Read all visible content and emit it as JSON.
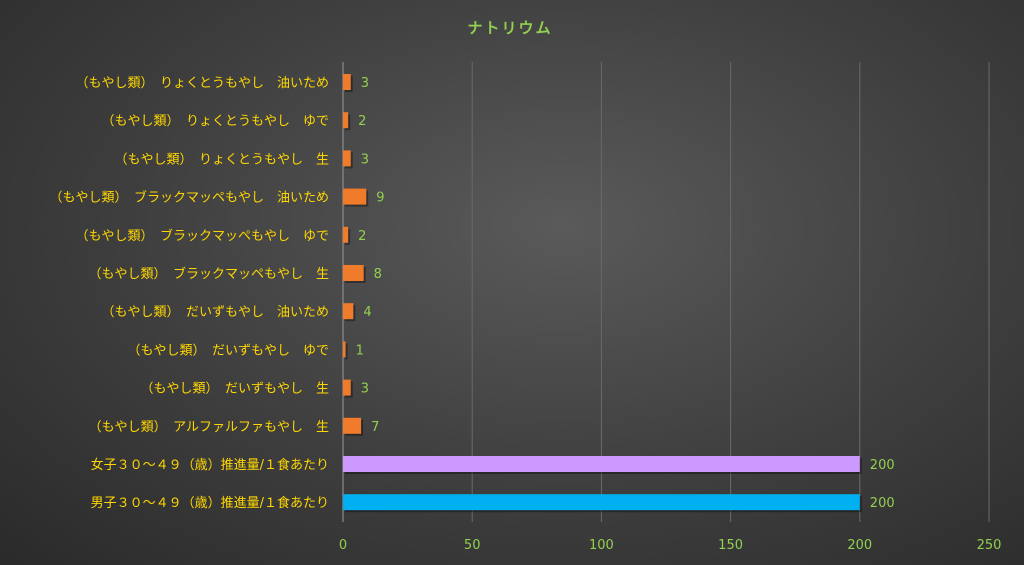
{
  "chart_data": {
    "type": "bar",
    "orientation": "horizontal",
    "title": "ナトリウム",
    "xlim": [
      0,
      250
    ],
    "xticks": [
      0,
      50,
      100,
      150,
      200,
      250
    ],
    "grid": true,
    "bars": [
      {
        "label": "（もやし類）　りょくとうもやし　油いため",
        "value": 3,
        "color": "#f07b2a"
      },
      {
        "label": "（もやし類）　りょくとうもやし　ゆで",
        "value": 2,
        "color": "#f07b2a"
      },
      {
        "label": "（もやし類）　りょくとうもやし　生",
        "value": 3,
        "color": "#f07b2a"
      },
      {
        "label": "（もやし類）　ブラックマッペもやし　油いため",
        "value": 9,
        "color": "#f07b2a"
      },
      {
        "label": "（もやし類）　ブラックマッペもやし　ゆで",
        "value": 2,
        "color": "#f07b2a"
      },
      {
        "label": "（もやし類）　ブラックマッペもやし　生",
        "value": 8,
        "color": "#f07b2a"
      },
      {
        "label": "（もやし類）　だいずもやし　油いため",
        "value": 4,
        "color": "#f07b2a"
      },
      {
        "label": "（もやし類）　だいずもやし　ゆで",
        "value": 1,
        "color": "#f07b2a"
      },
      {
        "label": "（もやし類）　だいずもやし　生",
        "value": 3,
        "color": "#f07b2a"
      },
      {
        "label": "（もやし類）　アルファルファもやし　生",
        "value": 7,
        "color": "#f07b2a"
      },
      {
        "label": "女子３０～４９（歳）推進量/１食あたり",
        "value": 200,
        "color": "#cc99ff"
      },
      {
        "label": "男子３０～４９（歳）推進量/１食あたり",
        "value": 200,
        "color": "#00b0f0"
      }
    ]
  }
}
